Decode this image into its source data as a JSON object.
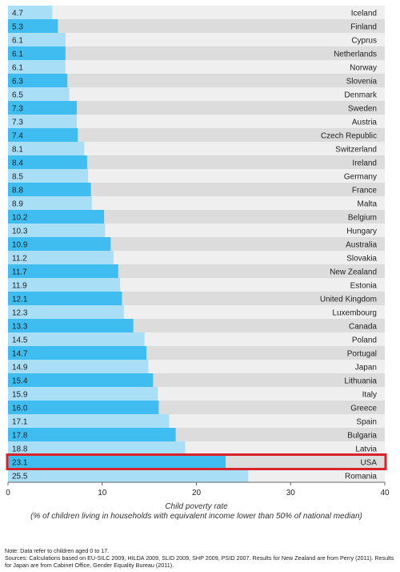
{
  "chart_data": {
    "type": "bar",
    "orientation": "horizontal",
    "categories": [
      "Iceland",
      "Finland",
      "Cyprus",
      "Netherlands",
      "Norway",
      "Slovenia",
      "Denmark",
      "Sweden",
      "Austria",
      "Czech Republic",
      "Switzerland",
      "Ireland",
      "Germany",
      "France",
      "Malta",
      "Belgium",
      "Hungary",
      "Australia",
      "Slovakia",
      "New Zealand",
      "Estonia",
      "United Kingdom",
      "Luxembourg",
      "Canada",
      "Poland",
      "Portugal",
      "Japan",
      "Lithuania",
      "Italy",
      "Greece",
      "Spain",
      "Bulgaria",
      "Latvia",
      "USA",
      "Romania"
    ],
    "values": [
      4.7,
      5.3,
      6.1,
      6.1,
      6.1,
      6.3,
      6.5,
      7.3,
      7.3,
      7.4,
      8.1,
      8.4,
      8.5,
      8.8,
      8.9,
      10.2,
      10.3,
      10.9,
      11.2,
      11.7,
      11.9,
      12.1,
      12.3,
      13.3,
      14.5,
      14.7,
      14.9,
      15.4,
      15.9,
      16.0,
      17.1,
      17.8,
      18.8,
      23.1,
      25.5
    ],
    "value_labels": [
      "4.7",
      "5.3",
      "6.1",
      "6.1",
      "6.1",
      "6.3",
      "6.5",
      "7.3",
      "7.3",
      "7.4",
      "8.1",
      "8.4",
      "8.5",
      "8.8",
      "8.9",
      "10.2",
      "10.3",
      "10.9",
      "11.2",
      "11.7",
      "11.9",
      "12.1",
      "12.3",
      "13.3",
      "14.5",
      "14.7",
      "14.9",
      "15.4",
      "15.9",
      "16.0",
      "17.1",
      "17.8",
      "18.8",
      "23.1",
      "25.5"
    ],
    "highlight": "USA",
    "xlim": [
      0,
      40
    ],
    "xticks": [
      0,
      10,
      20,
      30,
      40
    ],
    "xlabel_line1": "Child poverty rate",
    "xlabel_line2": "(% of children living in households with equivalent income lower than 50% of national median)",
    "grid": false,
    "colors": {
      "bar_dark": "#3fbdf0",
      "bar_light": "#a9def7",
      "track_dark": "#dcdcdc",
      "track_light": "#efefef",
      "highlight_border": "#d9232a",
      "axis": "#666666"
    }
  },
  "notes": {
    "line1": "Note: Data refer to children aged 0 to 17.",
    "line2": "Sources: Calculations based on EU-SILC 2009, HILDA 2009, SLID 2009, SHP 2009, PSID 2007. Results for New Zealand are from Perry (2011). Results for Japan are from Cabinet Office, Gender Equality Bureau (2011)."
  }
}
